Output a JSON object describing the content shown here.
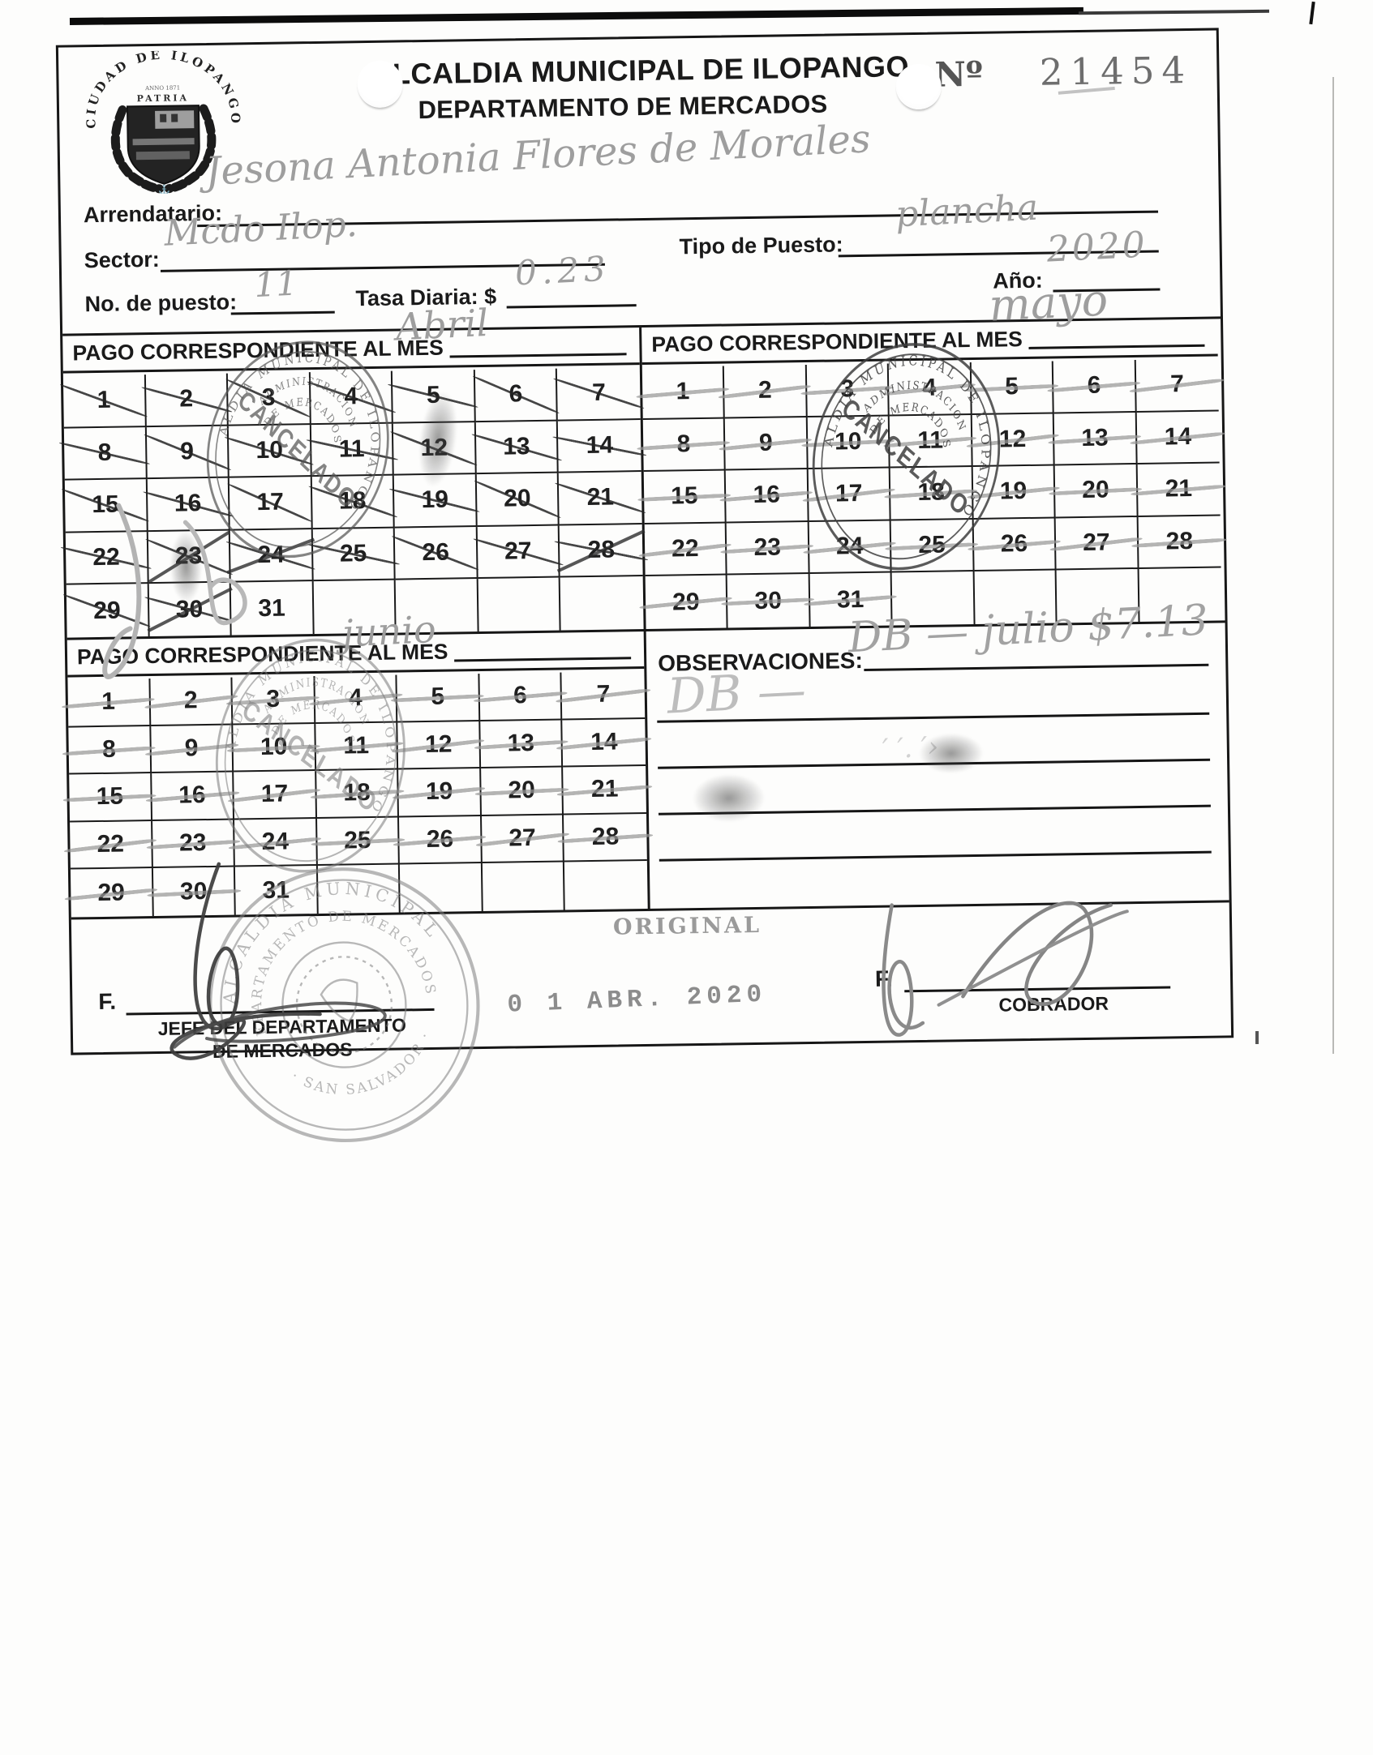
{
  "page": {
    "receipt_label": "Nº",
    "receipt_number": "21454"
  },
  "header": {
    "title1": "ALCALDIA MUNICIPAL DE ILOPANGO",
    "title2": "DEPARTAMENTO DE MERCADOS",
    "seal_top": "CIUDAD DE ILOPANGO",
    "seal_bottom": "PATRIA"
  },
  "fields": {
    "arrendatario": {
      "label": "Arrendatario:",
      "value": "Jesona Antonia Flores de Morales"
    },
    "sector": {
      "label": "Sector:",
      "value": "Mcdo Ilop."
    },
    "tipo_puesto": {
      "label": "Tipo de Puesto:",
      "value": "plancha"
    },
    "no_puesto": {
      "label": "No. de puesto:",
      "value": "11"
    },
    "tasa_diaria": {
      "label": "Tasa Diaria: $",
      "value": "0.23"
    },
    "anio": {
      "label": "Año:",
      "value": "2020"
    }
  },
  "calendars": [
    {
      "label": "PAGO CORRESPONDIENTE AL MES",
      "month": "Abril",
      "days": [
        1,
        2,
        3,
        4,
        5,
        6,
        7,
        8,
        9,
        10,
        11,
        12,
        13,
        14,
        15,
        16,
        17,
        18,
        19,
        20,
        21,
        22,
        23,
        24,
        25,
        26,
        27,
        28,
        29,
        30,
        31
      ],
      "struck_days": [
        1,
        2,
        3,
        4,
        5,
        6,
        7,
        8,
        9,
        10,
        11,
        12,
        13,
        14,
        15,
        16,
        17,
        18,
        19,
        20,
        21,
        22,
        23,
        24,
        25,
        26,
        27,
        28,
        29,
        30
      ],
      "cross_days": [
        23,
        24,
        28,
        30
      ],
      "strike_style": "pen"
    },
    {
      "label": "PAGO CORRESPONDIENTE AL MES",
      "month": "mayo",
      "days": [
        1,
        2,
        3,
        4,
        5,
        6,
        7,
        8,
        9,
        10,
        11,
        12,
        13,
        14,
        15,
        16,
        17,
        18,
        19,
        20,
        21,
        22,
        23,
        24,
        25,
        26,
        27,
        28,
        29,
        30,
        31
      ],
      "struck_days": [
        1,
        2,
        3,
        4,
        5,
        6,
        7,
        8,
        9,
        10,
        11,
        12,
        13,
        14,
        15,
        16,
        17,
        18,
        19,
        20,
        21,
        22,
        23,
        24,
        25,
        26,
        27,
        28,
        29,
        30,
        31
      ],
      "cross_days": [],
      "strike_style": "pencil"
    },
    {
      "label": "PAGO CORRESPONDIENTE AL MES",
      "month": "junio",
      "days": [
        1,
        2,
        3,
        4,
        5,
        6,
        7,
        8,
        9,
        10,
        11,
        12,
        13,
        14,
        15,
        16,
        17,
        18,
        19,
        20,
        21,
        22,
        23,
        24,
        25,
        26,
        27,
        28,
        29,
        30,
        31
      ],
      "struck_days": [
        1,
        2,
        3,
        4,
        5,
        6,
        7,
        8,
        9,
        10,
        11,
        12,
        13,
        14,
        15,
        16,
        17,
        18,
        19,
        20,
        21,
        22,
        23,
        24,
        25,
        26,
        27,
        28,
        29,
        30
      ],
      "cross_days": [],
      "strike_style": "pencil"
    }
  ],
  "observaciones": {
    "label": "OBSERVACIONES:",
    "entries": [
      "DB — julio $7.13",
      "DB —"
    ]
  },
  "footer": {
    "original": "ORIGINAL",
    "date_stamp": "0 1 ABR. 2020",
    "sig_label_left": "F.",
    "left_role_line1": "JEFE DEL DEPARTAMENTO",
    "left_role_line2": "DE MERCADOS",
    "sig_label_right": "F.",
    "right_role": "COBRADOR"
  },
  "stamps": {
    "ring_outer": "ALCALDIA MUNICIPAL DE ILOPANGO",
    "ring_inner1": "ADMINISTRACION",
    "ring_inner2": "DE MERCADOS",
    "center": "CANCELADO",
    "bottom_outer": "ALCALDIA MUNICIPAL",
    "bottom_inner": "DEPARTAMENTO DE MERCADOS",
    "bottom_city": "SAN SALVADOR"
  }
}
